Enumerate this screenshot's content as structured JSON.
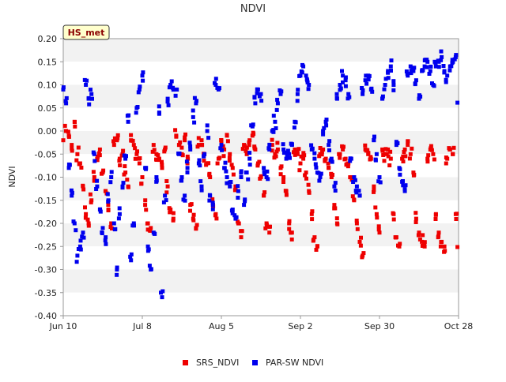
{
  "chart_data": {
    "type": "scatter",
    "title": "NDVI",
    "badge": "HS_met",
    "xlabel": "",
    "ylabel": "NDVI",
    "x_tick_labels": [
      "Jun 10",
      "Jul 8",
      "Aug 5",
      "Sep 2",
      "Sep 30",
      "Oct 28"
    ],
    "x_range_days": [
      0,
      140
    ],
    "ylim": [
      -0.4,
      0.2
    ],
    "y_tick_labels": [
      "0.20",
      "0.15",
      "0.10",
      "0.05",
      "0.00",
      "-0.05",
      "-0.10",
      "-0.15",
      "-0.20",
      "-0.25",
      "-0.30",
      "-0.35",
      "-0.40"
    ],
    "grid": "horizontal alternating bands",
    "legend_position": "bottom",
    "series": [
      {
        "name": "SRS_NDVI",
        "color": "#ee0000",
        "points": [
          [
            0,
            -0.02
          ],
          [
            1,
            0.0
          ],
          [
            2,
            -0.01
          ],
          [
            3,
            -0.03
          ],
          [
            4,
            0.02
          ],
          [
            5,
            -0.05
          ],
          [
            6,
            -0.07
          ],
          [
            7,
            -0.12
          ],
          [
            8,
            -0.18
          ],
          [
            9,
            -0.2
          ],
          [
            10,
            -0.15
          ],
          [
            11,
            -0.1
          ],
          [
            12,
            -0.06
          ],
          [
            13,
            -0.04
          ],
          [
            14,
            -0.09
          ],
          [
            15,
            -0.13
          ],
          [
            16,
            -0.17
          ],
          [
            17,
            -0.2
          ],
          [
            18,
            -0.03
          ],
          [
            19,
            -0.02
          ],
          [
            20,
            -0.06
          ],
          [
            21,
            -0.05
          ],
          [
            22,
            -0.09
          ],
          [
            23,
            -0.12
          ],
          [
            24,
            -0.02
          ],
          [
            25,
            -0.03
          ],
          [
            26,
            -0.05
          ],
          [
            27,
            -0.07
          ],
          [
            28,
            -0.1
          ],
          [
            29,
            -0.16
          ],
          [
            30,
            -0.2
          ],
          [
            31,
            -0.21
          ],
          [
            32,
            -0.03
          ],
          [
            33,
            -0.05
          ],
          [
            34,
            -0.06
          ],
          [
            35,
            -0.08
          ],
          [
            36,
            -0.04
          ],
          [
            37,
            -0.12
          ],
          [
            38,
            -0.17
          ],
          [
            39,
            -0.19
          ],
          [
            40,
            -0.01
          ],
          [
            41,
            -0.03
          ],
          [
            42,
            -0.05
          ],
          [
            43,
            -0.02
          ],
          [
            44,
            -0.07
          ],
          [
            45,
            -0.16
          ],
          [
            46,
            -0.19
          ],
          [
            47,
            -0.21
          ],
          [
            48,
            -0.03
          ],
          [
            49,
            -0.02
          ],
          [
            50,
            -0.05
          ],
          [
            51,
            -0.07
          ],
          [
            52,
            -0.1
          ],
          [
            53,
            -0.16
          ],
          [
            54,
            -0.18
          ],
          [
            55,
            -0.06
          ],
          [
            56,
            -0.02
          ],
          [
            57,
            -0.04
          ],
          [
            58,
            -0.01
          ],
          [
            59,
            -0.05
          ],
          [
            60,
            -0.08
          ],
          [
            61,
            -0.12
          ],
          [
            62,
            -0.2
          ],
          [
            63,
            -0.23
          ],
          [
            64,
            -0.03
          ],
          [
            65,
            -0.05
          ],
          [
            66,
            -0.02
          ],
          [
            67,
            -0.01
          ],
          [
            68,
            -0.04
          ],
          [
            69,
            -0.07
          ],
          [
            70,
            -0.1
          ],
          [
            71,
            -0.14
          ],
          [
            72,
            -0.2
          ],
          [
            73,
            -0.22
          ],
          [
            74,
            -0.03
          ],
          [
            75,
            -0.05
          ],
          [
            76,
            -0.04
          ],
          [
            77,
            -0.08
          ],
          [
            78,
            -0.1
          ],
          [
            79,
            -0.13
          ],
          [
            80,
            -0.2
          ],
          [
            81,
            -0.22
          ],
          [
            82,
            -0.04
          ],
          [
            83,
            -0.05
          ],
          [
            84,
            -0.07
          ],
          [
            85,
            -0.06
          ],
          [
            86,
            -0.09
          ],
          [
            87,
            -0.13
          ],
          [
            88,
            -0.18
          ],
          [
            89,
            -0.23
          ],
          [
            90,
            -0.25
          ],
          [
            91,
            -0.05
          ],
          [
            92,
            -0.04
          ],
          [
            93,
            -0.06
          ],
          [
            94,
            -0.08
          ],
          [
            95,
            -0.1
          ],
          [
            96,
            -0.16
          ],
          [
            97,
            -0.2
          ],
          [
            98,
            -0.05
          ],
          [
            99,
            -0.04
          ],
          [
            100,
            -0.06
          ],
          [
            101,
            -0.07
          ],
          [
            102,
            -0.1
          ],
          [
            103,
            -0.15
          ],
          [
            104,
            -0.2
          ],
          [
            105,
            -0.24
          ],
          [
            106,
            -0.27
          ],
          [
            107,
            -0.04
          ],
          [
            108,
            -0.05
          ],
          [
            109,
            -0.06
          ],
          [
            110,
            -0.12
          ],
          [
            111,
            -0.18
          ],
          [
            112,
            -0.22
          ],
          [
            113,
            -0.04
          ],
          [
            114,
            -0.05
          ],
          [
            115,
            -0.04
          ],
          [
            116,
            -0.06
          ],
          [
            117,
            -0.18
          ],
          [
            118,
            -0.23
          ],
          [
            119,
            -0.25
          ],
          [
            120,
            -0.06
          ],
          [
            121,
            -0.04
          ],
          [
            122,
            -0.03
          ],
          [
            123,
            -0.05
          ],
          [
            124,
            -0.09
          ],
          [
            125,
            -0.19
          ],
          [
            126,
            -0.22
          ],
          [
            127,
            -0.24
          ],
          [
            128,
            -0.25
          ],
          [
            129,
            -0.06
          ],
          [
            130,
            -0.04
          ],
          [
            131,
            -0.05
          ],
          [
            132,
            -0.18
          ],
          [
            133,
            -0.22
          ],
          [
            134,
            -0.24
          ],
          [
            135,
            -0.25
          ],
          [
            136,
            -0.06
          ],
          [
            137,
            -0.04
          ],
          [
            138,
            -0.05
          ],
          [
            139,
            -0.18
          ],
          [
            140,
            -0.24
          ]
        ]
      },
      {
        "name": "PAR-SW NDVI",
        "color": "#0000ee",
        "points": [
          [
            0,
            0.09
          ],
          [
            1,
            0.06
          ],
          [
            2,
            -0.08
          ],
          [
            3,
            -0.14
          ],
          [
            4,
            -0.2
          ],
          [
            5,
            -0.27
          ],
          [
            6,
            -0.25
          ],
          [
            7,
            -0.22
          ],
          [
            8,
            0.1
          ],
          [
            9,
            0.07
          ],
          [
            10,
            0.08
          ],
          [
            11,
            -0.05
          ],
          [
            12,
            -0.12
          ],
          [
            13,
            -0.17
          ],
          [
            14,
            -0.21
          ],
          [
            15,
            -0.23
          ],
          [
            16,
            -0.15
          ],
          [
            17,
            -0.1
          ],
          [
            18,
            -0.2
          ],
          [
            19,
            -0.3
          ],
          [
            20,
            -0.18
          ],
          [
            21,
            -0.12
          ],
          [
            22,
            -0.06
          ],
          [
            23,
            0.02
          ],
          [
            24,
            -0.28
          ],
          [
            25,
            -0.2
          ],
          [
            26,
            0.05
          ],
          [
            27,
            0.09
          ],
          [
            28,
            0.12
          ],
          [
            29,
            -0.08
          ],
          [
            30,
            -0.25
          ],
          [
            31,
            -0.3
          ],
          [
            32,
            -0.22
          ],
          [
            33,
            -0.1
          ],
          [
            34,
            0.04
          ],
          [
            35,
            -0.36
          ],
          [
            36,
            -0.14
          ],
          [
            37,
            0.07
          ],
          [
            38,
            0.1
          ],
          [
            39,
            0.09
          ],
          [
            40,
            0.09
          ],
          [
            41,
            -0.05
          ],
          [
            42,
            -0.1
          ],
          [
            43,
            -0.14
          ],
          [
            44,
            -0.08
          ],
          [
            45,
            -0.04
          ],
          [
            46,
            0.03
          ],
          [
            47,
            0.06
          ],
          [
            48,
            -0.07
          ],
          [
            49,
            -0.12
          ],
          [
            50,
            -0.05
          ],
          [
            51,
            0.0
          ],
          [
            52,
            -0.14
          ],
          [
            53,
            -0.16
          ],
          [
            54,
            0.1
          ],
          [
            55,
            0.09
          ],
          [
            56,
            -0.03
          ],
          [
            57,
            -0.08
          ],
          [
            58,
            -0.1
          ],
          [
            59,
            -0.12
          ],
          [
            60,
            -0.17
          ],
          [
            61,
            -0.19
          ],
          [
            62,
            -0.13
          ],
          [
            63,
            -0.1
          ],
          [
            64,
            -0.16
          ],
          [
            65,
            -0.09
          ],
          [
            66,
            -0.06
          ],
          [
            67,
            0.01
          ],
          [
            68,
            0.06
          ],
          [
            69,
            0.09
          ],
          [
            70,
            0.08
          ],
          [
            71,
            -0.08
          ],
          [
            72,
            -0.1
          ],
          [
            73,
            -0.04
          ],
          [
            74,
            0.0
          ],
          [
            75,
            0.02
          ],
          [
            76,
            0.06
          ],
          [
            77,
            0.08
          ],
          [
            78,
            -0.04
          ],
          [
            79,
            -0.06
          ],
          [
            80,
            -0.05
          ],
          [
            81,
            -0.03
          ],
          [
            82,
            0.02
          ],
          [
            83,
            0.08
          ],
          [
            84,
            0.12
          ],
          [
            85,
            0.14
          ],
          [
            86,
            0.12
          ],
          [
            87,
            0.1
          ],
          [
            88,
            -0.04
          ],
          [
            89,
            -0.06
          ],
          [
            90,
            -0.09
          ],
          [
            91,
            -0.1
          ],
          [
            92,
            0.0
          ],
          [
            93,
            0.02
          ],
          [
            94,
            -0.03
          ],
          [
            95,
            -0.06
          ],
          [
            96,
            -0.12
          ],
          [
            97,
            0.07
          ],
          [
            98,
            0.1
          ],
          [
            99,
            0.12
          ],
          [
            100,
            0.11
          ],
          [
            101,
            0.08
          ],
          [
            102,
            -0.06
          ],
          [
            103,
            -0.1
          ],
          [
            104,
            -0.12
          ],
          [
            105,
            -0.14
          ],
          [
            106,
            0.08
          ],
          [
            107,
            0.11
          ],
          [
            108,
            0.12
          ],
          [
            109,
            0.09
          ],
          [
            110,
            -0.02
          ],
          [
            111,
            -0.05
          ],
          [
            112,
            -0.1
          ],
          [
            113,
            0.07
          ],
          [
            114,
            0.1
          ],
          [
            115,
            0.13
          ],
          [
            116,
            0.14
          ],
          [
            117,
            0.1
          ],
          [
            118,
            -0.03
          ],
          [
            119,
            -0.08
          ],
          [
            120,
            -0.11
          ],
          [
            121,
            -0.13
          ],
          [
            122,
            0.12
          ],
          [
            123,
            0.14
          ],
          [
            124,
            0.13
          ],
          [
            125,
            0.11
          ],
          [
            126,
            0.07
          ],
          [
            127,
            0.13
          ],
          [
            128,
            0.14
          ],
          [
            129,
            0.15
          ],
          [
            130,
            0.13
          ],
          [
            131,
            0.1
          ],
          [
            132,
            0.14
          ],
          [
            133,
            0.15
          ],
          [
            134,
            0.16
          ],
          [
            135,
            0.13
          ],
          [
            136,
            0.12
          ],
          [
            137,
            0.14
          ],
          [
            138,
            0.15
          ],
          [
            139,
            0.16
          ],
          [
            140,
            0.05
          ]
        ]
      }
    ]
  }
}
